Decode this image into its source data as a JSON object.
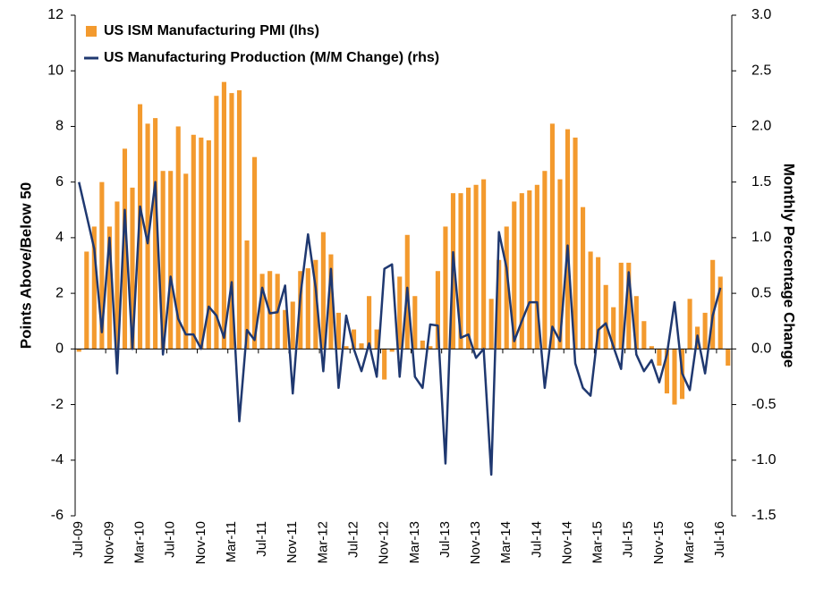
{
  "chart_data": {
    "type": "bar_line",
    "categories": [
      "Jul-09",
      null,
      null,
      null,
      "Nov-09",
      null,
      null,
      null,
      "Mar-10",
      null,
      null,
      null,
      "Jul-10",
      null,
      null,
      null,
      "Nov-10",
      null,
      null,
      null,
      "Mar-11",
      null,
      null,
      null,
      "Jul-11",
      null,
      null,
      null,
      "Nov-11",
      null,
      null,
      null,
      "Mar-12",
      null,
      null,
      null,
      "Jul-12",
      null,
      null,
      null,
      "Nov-12",
      null,
      null,
      null,
      "Mar-13",
      null,
      null,
      null,
      "Jul-13",
      null,
      null,
      null,
      "Nov-13",
      null,
      null,
      null,
      "Mar-14",
      null,
      null,
      null,
      "Jul-14",
      null,
      null,
      null,
      "Nov-14",
      null,
      null,
      null,
      "Mar-15",
      null,
      null,
      null,
      "Jul-15",
      null,
      null,
      null,
      "Nov-15",
      null,
      null,
      null,
      "Mar-16",
      null,
      null,
      null,
      "Jul-16",
      null
    ],
    "series": [
      {
        "name": "US ISM Manufacturing PMI (lhs)",
        "kind": "bar",
        "color": "#f39a2e",
        "axis": "y",
        "values": [
          -0.1,
          3.5,
          4.4,
          6.0,
          4.4,
          5.3,
          7.2,
          5.8,
          8.8,
          8.1,
          8.3,
          6.4,
          6.4,
          8.0,
          6.3,
          7.7,
          7.6,
          7.5,
          9.1,
          9.6,
          9.2,
          9.3,
          3.9,
          6.9,
          2.7,
          2.8,
          2.7,
          1.4,
          1.7,
          2.8,
          2.9,
          3.2,
          4.2,
          3.4,
          1.3,
          0.1,
          0.7,
          0.2,
          1.9,
          0.7,
          -1.1,
          -0.1,
          2.6,
          4.1,
          1.9,
          0.3,
          0.1,
          2.8,
          4.4,
          5.6,
          5.6,
          5.8,
          5.9,
          6.1,
          1.8,
          3.2,
          4.4,
          5.3,
          5.6,
          5.7,
          5.9,
          6.4,
          8.1,
          6.1,
          7.9,
          7.6,
          5.1,
          3.5,
          3.3,
          2.3,
          1.5,
          3.1,
          3.1,
          1.9,
          1.0,
          0.1,
          -0.6,
          -1.6,
          -2.0,
          -1.8,
          1.8,
          0.8,
          1.3,
          3.2,
          2.6,
          -0.6
        ]
      },
      {
        "name": "US Manufacturing Production (M/M Change) (rhs)",
        "kind": "line",
        "color": "#1f3870",
        "axis": "y2",
        "values": [
          1.5,
          1.2,
          0.9,
          0.15,
          1.0,
          -0.22,
          1.25,
          0.0,
          1.28,
          0.95,
          1.5,
          -0.05,
          0.65,
          0.27,
          0.13,
          0.13,
          0.0,
          0.38,
          0.3,
          0.1,
          0.6,
          -0.65,
          0.17,
          0.08,
          0.55,
          0.32,
          0.33,
          0.57,
          -0.4,
          0.48,
          1.03,
          0.55,
          -0.2,
          0.72,
          -0.35,
          0.3,
          0.0,
          -0.2,
          0.05,
          -0.25,
          0.72,
          0.76,
          -0.25,
          0.55,
          -0.25,
          -0.35,
          0.22,
          0.21,
          -1.03,
          0.87,
          0.1,
          0.13,
          -0.08,
          0.0,
          -1.13,
          1.05,
          0.73,
          0.07,
          0.25,
          0.42,
          0.42,
          -0.35,
          0.2,
          0.07,
          0.93,
          -0.13,
          -0.35,
          -0.42,
          0.17,
          0.23,
          0.02,
          -0.18,
          0.69,
          -0.05,
          -0.2,
          -0.1,
          -0.3,
          -0.05,
          0.42,
          -0.22,
          -0.37,
          0.12,
          -0.22,
          0.3,
          0.55,
          null
        ]
      }
    ],
    "ylabel": "Points Above/Below 50",
    "y2label": "Monthly Percentage Change",
    "ylim": [
      -6,
      12
    ],
    "yticks": [
      -6,
      -4,
      -2,
      0,
      2,
      4,
      6,
      8,
      10,
      12
    ],
    "y2lim": [
      -1.5,
      3.0
    ],
    "y2ticks": [
      {
        "value": -1.5,
        "label": "-1.5"
      },
      {
        "value": -1,
        "label": "-1.0"
      },
      {
        "value": -0.5,
        "label": "-0.5"
      },
      {
        "value": 0,
        "label": "0.0"
      },
      {
        "value": 0.5,
        "label": "0.5"
      },
      {
        "value": 1,
        "label": "1.0"
      },
      {
        "value": 1.5,
        "label": "1.5"
      },
      {
        "value": 2,
        "label": "2.0"
      },
      {
        "value": 2.5,
        "label": "2.5"
      },
      {
        "value": 3,
        "label": "3.0"
      }
    ],
    "legend": "upper left"
  }
}
